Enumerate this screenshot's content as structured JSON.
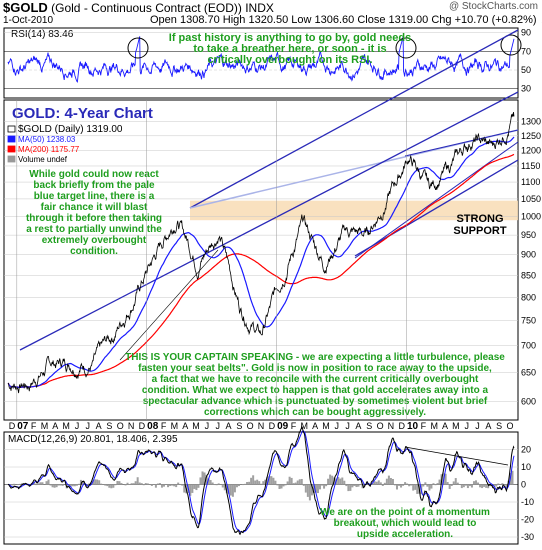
{
  "header": {
    "symbol": "$GOLD",
    "name": "(Gold - Continuous Contract (EOD))",
    "exchange": "INDX",
    "copyright": "@ StockCharts.com",
    "date": "1-Oct-2010",
    "ohlc": "Open 1308.70  High 1320.50  Low 1306.60  Close 1319.00  Chg +10.70 (+0.82%)",
    "ohlc_arrow": "▲"
  },
  "colors": {
    "price": "#000000",
    "ma50": "#1a1aff",
    "ma200": "#ff0000",
    "rsi": "#1a1aff",
    "trendline": "#2a2ab8",
    "target_line": "#aab4e8",
    "support": "#f8dcb4",
    "annotation": "#1e9e1e",
    "title": "#2a2ab8",
    "macd": "#000000",
    "signal": "#1a1aff",
    "histogram": "#a0a0a0",
    "panel_bg": "#ffffff",
    "grid": "#c8c8c8"
  },
  "rsi_panel": {
    "legend": "RSI(14) 83.46",
    "levels": [
      90,
      70,
      50,
      30
    ],
    "annotation": "If past history is anything to go by, gold needs to take a breather here, or soon - it is critically overbought on its RSI."
  },
  "price_panel": {
    "title": "GOLD: 4-Year Chart",
    "legend": [
      {
        "label": "$GOLD (Daily) 1319.00",
        "swatch": "bar"
      },
      {
        "label": "MA(50) 1238.03",
        "swatch": "blue"
      },
      {
        "label": "MA(200) 1175.77",
        "swatch": "red"
      },
      {
        "label": "Volume undef",
        "swatch": "gray"
      }
    ],
    "annotation_left": "While gold could now react back briefly from the pale blue target line, there is a fair chance it will blast through it before then taking a rest to partially unwind the extremely overbought condition.",
    "annotation_support": "STRONG SUPPORT",
    "annotation_bottom": "THIS IS YOUR CAPTAIN SPEAKING - we are expecting a little turbulence, please fasten your seat belts\". Gold is now in position to race away to the upside, a fact that we have to reconcile with the current critically overbought condition. What we expect to happen is that gold accelerates away into a spectacular advance which is punctuated by sometimes violent but brief corrections which can be bought aggressively.",
    "y_ticks": [
      1300,
      1250,
      1200,
      1150,
      1100,
      1050,
      1000,
      950,
      900,
      850,
      800,
      750,
      700,
      650,
      600
    ]
  },
  "macd_panel": {
    "legend": "MACD(12,26,9) 20.801, 18.406, 2.395",
    "y_ticks": [
      20,
      10,
      0,
      -10,
      -20,
      -30
    ],
    "annotation": "We are on the point of a momentum breakout, which would lead to upside acceleration."
  },
  "x_axis": {
    "labels": [
      "D",
      "07",
      "F",
      "M",
      "A",
      "M",
      "J",
      "J",
      "A",
      "S",
      "O",
      "N",
      "D",
      "08",
      "F",
      "M",
      "A",
      "M",
      "J",
      "J",
      "A",
      "S",
      "O",
      "N",
      "D",
      "09",
      "F",
      "M",
      "A",
      "M",
      "J",
      "J",
      "A",
      "S",
      "O",
      "N",
      "D",
      "10",
      "F",
      "M",
      "A",
      "M",
      "J",
      "J",
      "A",
      "S",
      "O"
    ],
    "year_labels": [
      "07",
      "08",
      "09",
      "10"
    ]
  },
  "chart_data": {
    "type": "line",
    "title": "GOLD: 4-Year Chart",
    "price_scale": "log",
    "ylim": [
      570,
      1380
    ],
    "x_range": [
      "2006-11",
      "2010-10"
    ],
    "series": [
      {
        "name": "$GOLD (Daily)",
        "x": [
          "2006-11",
          "2007-01",
          "2007-03",
          "2007-05",
          "2007-07",
          "2007-09",
          "2007-11",
          "2008-01",
          "2008-03",
          "2008-05",
          "2008-07",
          "2008-09",
          "2008-10",
          "2008-12",
          "2009-02",
          "2009-04",
          "2009-06",
          "2009-08",
          "2009-10",
          "2009-12",
          "2010-02",
          "2010-04",
          "2010-06",
          "2010-08",
          "2010-10"
        ],
        "values": [
          630,
          630,
          665,
          670,
          665,
          720,
          800,
          900,
          1000,
          880,
          960,
          780,
          720,
          850,
          980,
          880,
          960,
          950,
          1050,
          1180,
          1080,
          1150,
          1240,
          1210,
          1319
        ]
      },
      {
        "name": "MA(50)",
        "value_last": 1238.03
      },
      {
        "name": "MA(200)",
        "value_last": 1175.77
      }
    ],
    "rsi_last": 83.46,
    "macd_last": {
      "macd": 20.801,
      "signal": 18.406,
      "histogram": 2.395
    },
    "support_zone": [
      990,
      1045
    ],
    "annotations": [
      "GOLD: 4-Year Chart",
      "STRONG SUPPORT"
    ]
  }
}
